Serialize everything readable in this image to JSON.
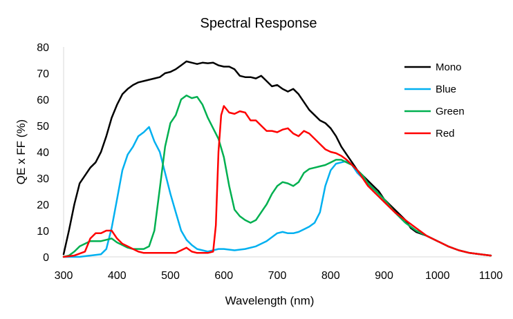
{
  "chart_data": {
    "type": "line",
    "title": "Spectral Response",
    "xlabel": "Wavelength (nm)",
    "ylabel": "QE x FF (%)",
    "xlim": [
      300,
      1100
    ],
    "ylim": [
      0,
      80
    ],
    "x_ticks": [
      300,
      400,
      500,
      600,
      700,
      800,
      900,
      1000,
      1100
    ],
    "y_ticks": [
      0,
      10,
      20,
      30,
      40,
      50,
      60,
      70,
      80
    ],
    "grid": false,
    "legend_position": "top-right",
    "series": [
      {
        "name": "Mono",
        "color": "#000000",
        "points": [
          [
            300,
            1
          ],
          [
            310,
            10
          ],
          [
            320,
            20
          ],
          [
            330,
            28
          ],
          [
            340,
            31
          ],
          [
            350,
            34
          ],
          [
            360,
            36
          ],
          [
            370,
            40
          ],
          [
            380,
            46
          ],
          [
            390,
            53
          ],
          [
            400,
            58
          ],
          [
            410,
            62
          ],
          [
            420,
            64
          ],
          [
            430,
            65.5
          ],
          [
            440,
            66.5
          ],
          [
            450,
            67
          ],
          [
            460,
            67.5
          ],
          [
            470,
            68
          ],
          [
            480,
            68.5
          ],
          [
            490,
            70
          ],
          [
            500,
            70.5
          ],
          [
            510,
            71.5
          ],
          [
            520,
            73
          ],
          [
            530,
            74.5
          ],
          [
            540,
            74
          ],
          [
            550,
            73.5
          ],
          [
            560,
            74
          ],
          [
            570,
            73.8
          ],
          [
            580,
            74
          ],
          [
            590,
            73
          ],
          [
            600,
            72.5
          ],
          [
            610,
            72.5
          ],
          [
            620,
            71.5
          ],
          [
            630,
            69
          ],
          [
            640,
            68.5
          ],
          [
            650,
            68.5
          ],
          [
            660,
            68
          ],
          [
            670,
            69
          ],
          [
            680,
            67
          ],
          [
            690,
            65
          ],
          [
            700,
            65.5
          ],
          [
            710,
            64
          ],
          [
            720,
            63
          ],
          [
            730,
            64
          ],
          [
            740,
            62
          ],
          [
            750,
            59
          ],
          [
            760,
            56
          ],
          [
            770,
            54
          ],
          [
            780,
            52
          ],
          [
            790,
            51
          ],
          [
            800,
            49
          ],
          [
            810,
            46
          ],
          [
            820,
            42
          ],
          [
            830,
            39
          ],
          [
            840,
            36
          ],
          [
            850,
            33
          ],
          [
            860,
            31
          ],
          [
            870,
            29
          ],
          [
            880,
            27
          ],
          [
            890,
            25
          ],
          [
            900,
            22
          ],
          [
            910,
            20
          ],
          [
            920,
            18
          ],
          [
            930,
            16
          ],
          [
            940,
            14
          ],
          [
            950,
            11
          ],
          [
            960,
            9.5
          ],
          [
            980,
            8
          ],
          [
            1000,
            6
          ],
          [
            1020,
            4
          ],
          [
            1040,
            2.5
          ],
          [
            1060,
            1.5
          ],
          [
            1080,
            1
          ],
          [
            1100,
            0.5
          ]
        ]
      },
      {
        "name": "Blue",
        "color": "#00B0F0",
        "points": [
          [
            300,
            0
          ],
          [
            330,
            0
          ],
          [
            350,
            0.5
          ],
          [
            370,
            1
          ],
          [
            380,
            3
          ],
          [
            390,
            11
          ],
          [
            400,
            22
          ],
          [
            410,
            33
          ],
          [
            420,
            39
          ],
          [
            430,
            42
          ],
          [
            440,
            46
          ],
          [
            450,
            47.5
          ],
          [
            460,
            49.5
          ],
          [
            470,
            44
          ],
          [
            480,
            40
          ],
          [
            490,
            32
          ],
          [
            500,
            24
          ],
          [
            510,
            17
          ],
          [
            520,
            10
          ],
          [
            530,
            6.5
          ],
          [
            540,
            4.5
          ],
          [
            550,
            3
          ],
          [
            560,
            2.5
          ],
          [
            570,
            2
          ],
          [
            580,
            2.5
          ],
          [
            590,
            3
          ],
          [
            600,
            3
          ],
          [
            620,
            2.5
          ],
          [
            640,
            3
          ],
          [
            660,
            4
          ],
          [
            680,
            6
          ],
          [
            700,
            9
          ],
          [
            710,
            9.5
          ],
          [
            720,
            9
          ],
          [
            730,
            9
          ],
          [
            740,
            9.5
          ],
          [
            750,
            10.5
          ],
          [
            760,
            11.5
          ],
          [
            770,
            13
          ],
          [
            780,
            17
          ],
          [
            790,
            27
          ],
          [
            800,
            33
          ],
          [
            810,
            35.5
          ],
          [
            820,
            36
          ],
          [
            830,
            36.5
          ],
          [
            840,
            35
          ],
          [
            850,
            32
          ],
          [
            860,
            30
          ],
          [
            870,
            28
          ],
          [
            880,
            25
          ],
          [
            890,
            23
          ],
          [
            900,
            21
          ],
          [
            920,
            17
          ],
          [
            940,
            13
          ],
          [
            960,
            10
          ],
          [
            980,
            8
          ],
          [
            1000,
            6
          ],
          [
            1020,
            4
          ],
          [
            1040,
            2.5
          ],
          [
            1060,
            1.5
          ],
          [
            1080,
            1
          ],
          [
            1100,
            0.5
          ]
        ]
      },
      {
        "name": "Green",
        "color": "#00B050",
        "points": [
          [
            300,
            0
          ],
          [
            310,
            0.5
          ],
          [
            320,
            2
          ],
          [
            330,
            4
          ],
          [
            340,
            5
          ],
          [
            350,
            6
          ],
          [
            360,
            6
          ],
          [
            370,
            6
          ],
          [
            380,
            6.5
          ],
          [
            390,
            7
          ],
          [
            400,
            5.5
          ],
          [
            410,
            4.5
          ],
          [
            420,
            3.5
          ],
          [
            430,
            3
          ],
          [
            440,
            3
          ],
          [
            450,
            3
          ],
          [
            460,
            4
          ],
          [
            470,
            10
          ],
          [
            480,
            26
          ],
          [
            490,
            42
          ],
          [
            500,
            51
          ],
          [
            510,
            54
          ],
          [
            520,
            60
          ],
          [
            530,
            61.5
          ],
          [
            540,
            60.5
          ],
          [
            550,
            61
          ],
          [
            560,
            58
          ],
          [
            570,
            53
          ],
          [
            580,
            49
          ],
          [
            590,
            45
          ],
          [
            600,
            38
          ],
          [
            610,
            27
          ],
          [
            620,
            18
          ],
          [
            630,
            15.5
          ],
          [
            640,
            14
          ],
          [
            650,
            13
          ],
          [
            660,
            14
          ],
          [
            670,
            17
          ],
          [
            680,
            20
          ],
          [
            690,
            24
          ],
          [
            700,
            27
          ],
          [
            710,
            28.5
          ],
          [
            720,
            28
          ],
          [
            730,
            27
          ],
          [
            740,
            28.5
          ],
          [
            750,
            32
          ],
          [
            760,
            33.5
          ],
          [
            770,
            34
          ],
          [
            780,
            34.5
          ],
          [
            790,
            35
          ],
          [
            800,
            36
          ],
          [
            810,
            37
          ],
          [
            820,
            37
          ],
          [
            830,
            36
          ],
          [
            840,
            35
          ],
          [
            850,
            33
          ],
          [
            860,
            31
          ],
          [
            870,
            28
          ],
          [
            880,
            26
          ],
          [
            890,
            24
          ],
          [
            900,
            22
          ],
          [
            920,
            17
          ],
          [
            940,
            13
          ],
          [
            960,
            10
          ],
          [
            980,
            8
          ],
          [
            1000,
            6
          ],
          [
            1020,
            4
          ],
          [
            1040,
            2.5
          ],
          [
            1060,
            1.5
          ],
          [
            1080,
            1
          ],
          [
            1100,
            0.5
          ]
        ]
      },
      {
        "name": "Red",
        "color": "#FF0000",
        "points": [
          [
            300,
            0
          ],
          [
            320,
            0.5
          ],
          [
            340,
            2
          ],
          [
            350,
            7
          ],
          [
            360,
            9
          ],
          [
            370,
            9
          ],
          [
            380,
            10
          ],
          [
            390,
            10
          ],
          [
            400,
            7
          ],
          [
            410,
            5
          ],
          [
            420,
            4
          ],
          [
            430,
            3
          ],
          [
            440,
            2
          ],
          [
            450,
            1.5
          ],
          [
            470,
            1.5
          ],
          [
            490,
            1.5
          ],
          [
            510,
            1.5
          ],
          [
            520,
            2.5
          ],
          [
            530,
            3.5
          ],
          [
            540,
            2
          ],
          [
            550,
            1.5
          ],
          [
            570,
            1.5
          ],
          [
            580,
            2
          ],
          [
            585,
            12
          ],
          [
            590,
            40
          ],
          [
            595,
            54
          ],
          [
            600,
            57.5
          ],
          [
            610,
            55
          ],
          [
            620,
            54.5
          ],
          [
            630,
            55.5
          ],
          [
            640,
            55
          ],
          [
            650,
            52
          ],
          [
            660,
            52
          ],
          [
            670,
            50
          ],
          [
            680,
            48
          ],
          [
            690,
            48
          ],
          [
            700,
            47.5
          ],
          [
            710,
            48.5
          ],
          [
            720,
            49
          ],
          [
            730,
            47
          ],
          [
            740,
            46
          ],
          [
            750,
            48
          ],
          [
            760,
            47
          ],
          [
            770,
            45
          ],
          [
            780,
            43
          ],
          [
            790,
            41
          ],
          [
            800,
            40
          ],
          [
            810,
            39.5
          ],
          [
            820,
            38.5
          ],
          [
            830,
            37
          ],
          [
            840,
            35
          ],
          [
            850,
            33
          ],
          [
            860,
            30
          ],
          [
            870,
            27
          ],
          [
            880,
            25
          ],
          [
            890,
            23
          ],
          [
            900,
            21
          ],
          [
            920,
            17
          ],
          [
            940,
            14
          ],
          [
            960,
            11
          ],
          [
            980,
            8
          ],
          [
            1000,
            6
          ],
          [
            1020,
            4
          ],
          [
            1040,
            2.5
          ],
          [
            1060,
            1.5
          ],
          [
            1080,
            1
          ],
          [
            1100,
            0.5
          ]
        ]
      }
    ]
  }
}
